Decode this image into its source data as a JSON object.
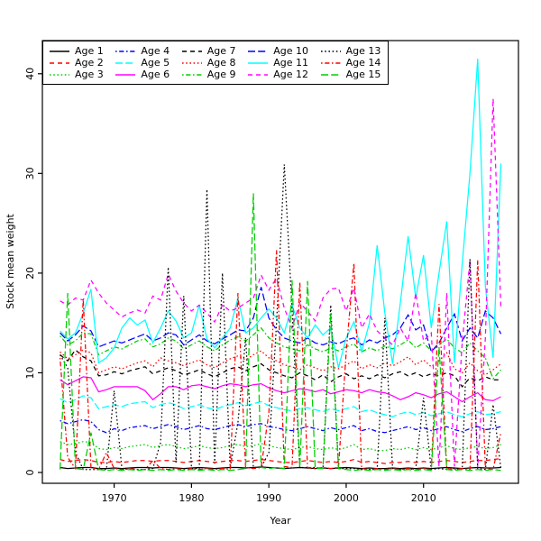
{
  "figure": {
    "background": "#ffffff"
  },
  "chart_data": {
    "type": "line",
    "title": "",
    "xlabel": "Year",
    "ylabel": "Stock mean weight",
    "grid": false,
    "legend_position": "top-left-inside",
    "x_ticks": [
      1970,
      1980,
      1990,
      2000,
      2010
    ],
    "y_ticks": [
      0,
      10,
      20,
      30,
      40
    ],
    "x_range": [
      1963,
      2020
    ],
    "y_range_shown": [
      0,
      41.5
    ],
    "palette": {
      "black": "#000000",
      "red": "#FF0000",
      "green": "#00CD00",
      "blue": "#0000FF",
      "cyan": "#00FFFF",
      "magenta": "#FF00FF"
    },
    "x": [
      1963,
      1964,
      1965,
      1966,
      1967,
      1968,
      1969,
      1970,
      1971,
      1972,
      1973,
      1974,
      1975,
      1976,
      1977,
      1978,
      1979,
      1980,
      1981,
      1982,
      1983,
      1984,
      1985,
      1986,
      1987,
      1988,
      1989,
      1990,
      1991,
      1992,
      1993,
      1994,
      1995,
      1996,
      1997,
      1998,
      1999,
      2000,
      2001,
      2002,
      2003,
      2004,
      2005,
      2006,
      2007,
      2008,
      2009,
      2010,
      2011,
      2012,
      2013,
      2014,
      2015,
      2016,
      2017,
      2018,
      2019,
      2020
    ],
    "series": [
      {
        "name": "Age 1",
        "color": "#000000",
        "linetype": "solid",
        "values": [
          0.5,
          0.4,
          0.45,
          0.5,
          0.5,
          0.4,
          0.4,
          0.45,
          0.4,
          0.45,
          0.5,
          0.5,
          0.45,
          0.5,
          0.5,
          0.45,
          0.4,
          0.45,
          0.5,
          0.45,
          0.4,
          0.45,
          0.5,
          0.5,
          0.45,
          0.5,
          0.55,
          0.5,
          0.45,
          0.4,
          0.45,
          0.5,
          0.45,
          0.4,
          0.45,
          0.4,
          0.45,
          0.5,
          0.45,
          0.4,
          0.45,
          0.4,
          0.4,
          0.45,
          0.4,
          0.45,
          0.4,
          0.45,
          0.4,
          0.45,
          0.5,
          0.45,
          0.4,
          0.45,
          0.5,
          0.45,
          0.45,
          0.5
        ]
      },
      {
        "name": "Age 2",
        "color": "#FF0000",
        "linetype": "dashed",
        "values": [
          1.3,
          1.1,
          1.2,
          1.3,
          1.2,
          1.0,
          1.0,
          1.1,
          1.0,
          1.1,
          1.2,
          1.2,
          1.1,
          1.2,
          1.2,
          1.1,
          1.0,
          1.1,
          1.2,
          1.1,
          1.0,
          1.1,
          1.2,
          1.2,
          1.1,
          1.2,
          1.3,
          1.2,
          1.1,
          1.0,
          1.0,
          1.1,
          1.2,
          1.1,
          1.0,
          1.1,
          1.0,
          1.1,
          1.3,
          1.0,
          1.1,
          1.0,
          0.9,
          1.0,
          1.0,
          1.1,
          1.0,
          1.1,
          1.0,
          1.1,
          1.2,
          1.1,
          1.0,
          1.1,
          1.2,
          1.2,
          1.3,
          1.4
        ]
      },
      {
        "name": "Age 3",
        "color": "#00CD00",
        "linetype": "dotted",
        "values": [
          3.1,
          2.8,
          2.9,
          3.1,
          3.0,
          2.4,
          2.3,
          2.5,
          2.4,
          2.6,
          2.7,
          2.8,
          2.5,
          2.7,
          2.8,
          2.6,
          2.4,
          2.5,
          2.7,
          2.5,
          2.4,
          2.5,
          2.7,
          2.8,
          2.6,
          2.7,
          2.9,
          2.7,
          2.5,
          2.4,
          2.3,
          2.5,
          2.6,
          2.4,
          2.3,
          2.5,
          2.3,
          2.5,
          2.8,
          2.3,
          2.4,
          2.2,
          2.2,
          2.4,
          2.3,
          2.5,
          2.3,
          2.5,
          2.3,
          2.5,
          2.7,
          2.4,
          2.3,
          2.5,
          2.6,
          2.4,
          2.5,
          2.8
        ]
      },
      {
        "name": "Age 4",
        "color": "#0000FF",
        "linetype": "dotdash",
        "values": [
          5.2,
          4.9,
          5.1,
          5.3,
          5.1,
          4.3,
          4.0,
          4.4,
          4.2,
          4.5,
          4.6,
          4.7,
          4.4,
          4.6,
          4.8,
          4.6,
          4.3,
          4.5,
          4.7,
          4.4,
          4.3,
          4.5,
          4.7,
          4.8,
          4.6,
          4.8,
          4.9,
          4.6,
          4.5,
          4.3,
          4.2,
          4.4,
          4.6,
          4.4,
          4.2,
          4.5,
          4.3,
          4.5,
          4.7,
          4.2,
          4.4,
          4.1,
          4.0,
          4.2,
          4.4,
          4.6,
          4.3,
          4.5,
          4.2,
          4.4,
          4.6,
          4.3,
          4.1,
          4.4,
          4.6,
          4.3,
          4.4,
          4.6
        ]
      },
      {
        "name": "Age 5",
        "color": "#00FFFF",
        "linetype": "longdash",
        "values": [
          7.4,
          7.0,
          7.3,
          7.7,
          7.5,
          6.4,
          6.6,
          6.8,
          6.6,
          6.9,
          7.0,
          7.1,
          6.5,
          6.8,
          7.0,
          6.8,
          6.4,
          6.6,
          6.8,
          6.5,
          6.3,
          6.6,
          6.8,
          7.0,
          6.7,
          6.9,
          7.1,
          6.7,
          6.5,
          6.3,
          6.2,
          6.4,
          6.5,
          6.3,
          6.1,
          6.4,
          6.2,
          6.4,
          6.6,
          6.1,
          6.3,
          6.0,
          5.8,
          5.6,
          5.9,
          6.1,
          5.8,
          6.0,
          5.7,
          5.9,
          6.1,
          5.8,
          5.6,
          5.9,
          6.1,
          5.8,
          5.9,
          6.1
        ]
      },
      {
        "name": "Age 6",
        "color": "#FF00FF",
        "linetype": "solid",
        "values": [
          9.3,
          8.8,
          9.2,
          9.6,
          9.5,
          8.1,
          8.3,
          8.6,
          8.6,
          8.6,
          8.6,
          8.2,
          7.3,
          7.9,
          8.6,
          8.6,
          8.3,
          8.7,
          8.8,
          8.6,
          8.4,
          8.7,
          8.9,
          8.8,
          8.6,
          8.8,
          8.9,
          8.5,
          8.2,
          8.0,
          8.2,
          8.4,
          8.3,
          8.1,
          8.3,
          7.9,
          8.1,
          8.3,
          8.2,
          8.0,
          8.3,
          8.1,
          8.0,
          7.7,
          7.3,
          7.6,
          8.0,
          7.8,
          7.5,
          7.9,
          8.1,
          7.6,
          7.1,
          7.6,
          8.0,
          7.3,
          7.2,
          7.6
        ]
      },
      {
        "name": "Age 7",
        "color": "#000000",
        "linetype": "dashed",
        "values": [
          11.8,
          11.2,
          12.3,
          11.6,
          11.2,
          9.7,
          9.8,
          10.1,
          9.9,
          10.2,
          10.4,
          10.6,
          9.9,
          10.2,
          10.5,
          10.2,
          9.8,
          10.0,
          10.3,
          9.9,
          9.6,
          10.0,
          10.4,
          10.6,
          10.2,
          10.6,
          10.9,
          10.3,
          10.0,
          9.7,
          9.5,
          10.0,
          9.7,
          9.3,
          9.8,
          9.1,
          9.6,
          9.9,
          9.4,
          9.7,
          9.4,
          9.8,
          9.5,
          9.9,
          10.1,
          9.7,
          10.0,
          9.6,
          9.9,
          9.7,
          10.0,
          9.7,
          8.6,
          9.5,
          9.2,
          9.6,
          9.3,
          9.3
        ]
      },
      {
        "name": "Age 8",
        "color": "#FF0000",
        "linetype": "dotted",
        "values": [
          12.1,
          11.4,
          11.8,
          12.3,
          12.0,
          10.0,
          10.3,
          10.6,
          10.4,
          10.7,
          11.0,
          11.2,
          10.6,
          11.5,
          11.2,
          11.0,
          10.7,
          11.0,
          11.3,
          10.8,
          10.5,
          11.0,
          11.4,
          11.7,
          11.3,
          11.8,
          12.2,
          11.5,
          11.2,
          10.8,
          10.6,
          10.3,
          10.8,
          10.5,
          10.2,
          10.6,
          10.4,
          10.8,
          11.2,
          10.4,
          10.8,
          10.5,
          11.0,
          10.7,
          11.1,
          11.6,
          10.8,
          11.3,
          10.6,
          11.2,
          12.0,
          10.4,
          10.0,
          11.0,
          10.2,
          9.8,
          10.3,
          10.9
        ]
      },
      {
        "name": "Age 9",
        "color": "#00CD00",
        "linetype": "dotdash",
        "values": [
          13.7,
          12.8,
          13.2,
          14.0,
          13.9,
          11.8,
          12.2,
          12.6,
          12.4,
          12.8,
          13.2,
          13.4,
          12.6,
          12.9,
          13.5,
          13.2,
          12.4,
          12.8,
          13.2,
          12.6,
          12.2,
          12.8,
          13.3,
          13.6,
          13.2,
          13.8,
          14.5,
          13.5,
          13.0,
          12.6,
          12.4,
          12.2,
          12.8,
          12.4,
          12.1,
          12.5,
          12.2,
          12.6,
          12.9,
          12.1,
          12.5,
          12.2,
          12.7,
          12.4,
          12.8,
          13.3,
          12.5,
          13.0,
          12.2,
          12.8,
          13.4,
          12.5,
          12.0,
          13.0,
          12.2,
          11.5,
          9.4,
          10.3
        ]
      },
      {
        "name": "Age 10",
        "color": "#0000FF",
        "linetype": "longdash",
        "values": [
          14.0,
          13.2,
          13.8,
          14.7,
          14.2,
          12.6,
          12.9,
          13.2,
          13.0,
          13.3,
          13.6,
          13.9,
          13.2,
          13.5,
          14.0,
          13.8,
          12.8,
          13.3,
          13.8,
          13.2,
          12.9,
          13.4,
          13.8,
          14.3,
          14.2,
          15.5,
          18.6,
          15.5,
          14.3,
          13.5,
          13.2,
          13.0,
          13.5,
          13.0,
          12.8,
          13.1,
          12.9,
          13.3,
          13.5,
          12.8,
          13.3,
          13.0,
          13.5,
          13.8,
          14.5,
          15.8,
          14.3,
          14.8,
          12.1,
          13.0,
          14.5,
          15.9,
          13.2,
          14.5,
          13.5,
          16.2,
          15.5,
          13.9
        ]
      },
      {
        "name": "Age 11",
        "color": "#00FFFF",
        "linetype": "solid",
        "values": [
          14.2,
          13.4,
          14.0,
          16.0,
          18.4,
          11.0,
          11.5,
          12.5,
          14.5,
          15.5,
          14.8,
          15.3,
          13.0,
          14.5,
          16.2,
          15.2,
          13.5,
          14.0,
          16.8,
          13.4,
          12.5,
          13.5,
          14.5,
          17.5,
          14.0,
          14.5,
          15.5,
          16.4,
          15.5,
          14.0,
          16.8,
          14.5,
          13.5,
          14.8,
          13.8,
          14.5,
          10.5,
          13.5,
          15.1,
          12.1,
          15.0,
          22.8,
          16.0,
          10.9,
          17.0,
          23.7,
          17.5,
          21.8,
          14.5,
          20.0,
          25.2,
          11.0,
          20.9,
          30.0,
          41.5,
          18.7,
          11.5,
          31.0
        ]
      },
      {
        "name": "Age 12",
        "color": "#FF00FF",
        "linetype": "dashed",
        "values": [
          17.2,
          16.8,
          17.5,
          17.3,
          19.3,
          18.0,
          17.0,
          16.3,
          15.6,
          16.0,
          16.3,
          16.0,
          17.7,
          17.3,
          19.9,
          18.2,
          17.0,
          16.2,
          16.8,
          16.0,
          15.1,
          16.8,
          16.2,
          16.5,
          17.0,
          17.5,
          19.8,
          18.3,
          19.5,
          16.5,
          14.5,
          17.0,
          16.2,
          15.2,
          17.5,
          18.4,
          18.5,
          16.2,
          18.5,
          14.5,
          15.9,
          14.2,
          13.5,
          12.8,
          14.5,
          13.2,
          18.0,
          13.2,
          14.0,
          0.6,
          18.0,
          0.6,
          13.0,
          21.3,
          0.5,
          13.5,
          37.5,
          16.6
        ]
      },
      {
        "name": "Age 13",
        "color": "#000000",
        "linetype": "dotted",
        "values": [
          11.8,
          10.5,
          2.0,
          0.3,
          0.3,
          0.3,
          0.3,
          8.2,
          0.4,
          0.3,
          0.3,
          0.3,
          0.4,
          3.0,
          20.6,
          1.0,
          17.7,
          0.4,
          0.4,
          28.4,
          0.9,
          20.0,
          0.5,
          5.0,
          13.5,
          0.5,
          0.5,
          2.0,
          15.0,
          30.9,
          16.4,
          0.5,
          0.5,
          0.5,
          0.4,
          16.8,
          0.4,
          0.4,
          0.4,
          0.3,
          0.3,
          0.3,
          15.5,
          0.4,
          0.3,
          0.3,
          0.4,
          7.5,
          0.3,
          0.4,
          0.3,
          0.4,
          0.3,
          21.4,
          0.4,
          0.3,
          6.8,
          0.4
        ]
      },
      {
        "name": "Age 14",
        "color": "#FF0000",
        "linetype": "dotdash",
        "values": [
          11.5,
          1.5,
          0.4,
          17.4,
          0.5,
          0.3,
          2.0,
          0.4,
          0.3,
          0.4,
          0.3,
          0.3,
          1.2,
          0.4,
          0.3,
          0.4,
          0.3,
          0.4,
          0.3,
          0.4,
          0.3,
          0.4,
          0.3,
          18.0,
          0.5,
          0.4,
          0.5,
          6.0,
          22.3,
          0.6,
          0.5,
          19.1,
          0.5,
          0.4,
          0.5,
          0.4,
          0.5,
          12.0,
          21.0,
          0.4,
          0.3,
          0.4,
          0.3,
          0.4,
          0.3,
          0.4,
          0.3,
          0.4,
          0.3,
          16.9,
          0.4,
          0.3,
          0.4,
          0.3,
          21.3,
          0.4,
          0.3,
          4.0
        ]
      },
      {
        "name": "Age 15",
        "color": "#00CD00",
        "linetype": "longdash",
        "values": [
          0.3,
          18.0,
          0.4,
          0.3,
          4.0,
          0.3,
          0.2,
          0.3,
          0.2,
          0.3,
          0.2,
          0.3,
          0.2,
          0.3,
          0.2,
          0.3,
          0.2,
          0.3,
          0.2,
          0.3,
          0.2,
          0.3,
          0.2,
          0.3,
          0.4,
          28.0,
          0.5,
          0.4,
          0.5,
          0.4,
          19.3,
          0.5,
          19.2,
          0.4,
          0.4,
          16.0,
          0.4,
          0.3,
          0.2,
          0.3,
          0.2,
          0.3,
          0.2,
          0.3,
          0.2,
          0.3,
          0.2,
          0.3,
          0.2,
          12.6,
          0.3,
          0.2,
          0.3,
          0.2,
          0.3,
          0.2,
          0.3,
          0.2
        ]
      }
    ]
  }
}
